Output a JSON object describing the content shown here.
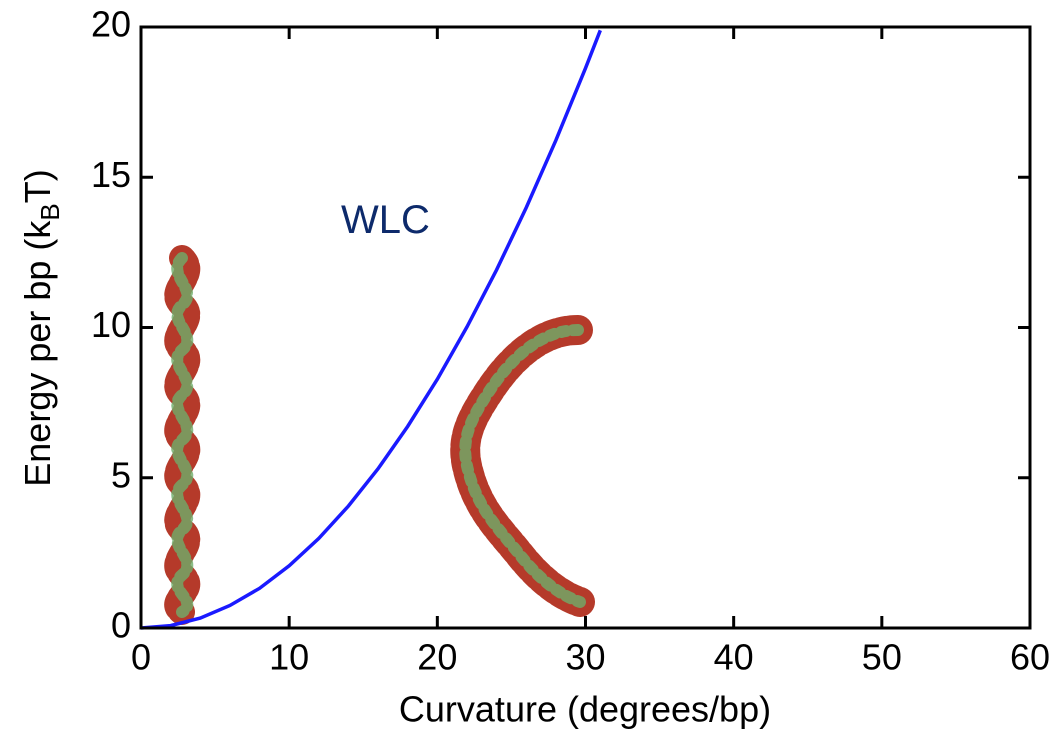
{
  "chart_data": {
    "type": "line",
    "xlabel": "Curvature (degrees/bp)",
    "ylabel": {
      "main": "Energy per bp (k",
      "sub": "B",
      "end": "T)"
    },
    "annotation": {
      "text": "WLC",
      "x": 16.5,
      "y": 13.5
    },
    "x": [
      0,
      2,
      4,
      6,
      8,
      10,
      12,
      14,
      16,
      18,
      20,
      22,
      24,
      26,
      28,
      30,
      31
    ],
    "series": [
      {
        "name": "WLC",
        "color": "#1a1aff",
        "values": [
          0,
          0.08,
          0.33,
          0.75,
          1.32,
          2.07,
          2.98,
          4.06,
          5.3,
          6.71,
          8.28,
          10.02,
          11.92,
          13.99,
          16.23,
          18.63,
          19.89
        ]
      }
    ],
    "xlim": [
      0,
      60
    ],
    "ylim": [
      0,
      20
    ],
    "xticks": [
      0,
      10,
      20,
      30,
      40,
      50,
      60
    ],
    "yticks": [
      0,
      5,
      10,
      15,
      20
    ]
  }
}
